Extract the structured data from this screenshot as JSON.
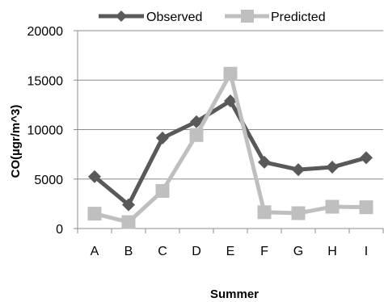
{
  "chart_data": {
    "type": "line",
    "title": "",
    "xlabel": "Summer",
    "ylabel": "CO(µgr/m^3)",
    "categories": [
      "A",
      "B",
      "C",
      "D",
      "E",
      "F",
      "G",
      "H",
      "I"
    ],
    "ylim": [
      0,
      20000
    ],
    "yticks": [
      0,
      5000,
      10000,
      15000,
      20000
    ],
    "grid": "horizontal",
    "legend_position": "top",
    "series": [
      {
        "name": "Observed",
        "color": "#595959",
        "marker": "diamond",
        "values": [
          5250,
          2400,
          9150,
          10800,
          12900,
          6700,
          5950,
          6200,
          7150
        ]
      },
      {
        "name": "Predicted",
        "color": "#bfbfbf",
        "marker": "square",
        "values": [
          1500,
          650,
          3800,
          9450,
          15650,
          1650,
          1550,
          2200,
          2150
        ]
      }
    ]
  }
}
